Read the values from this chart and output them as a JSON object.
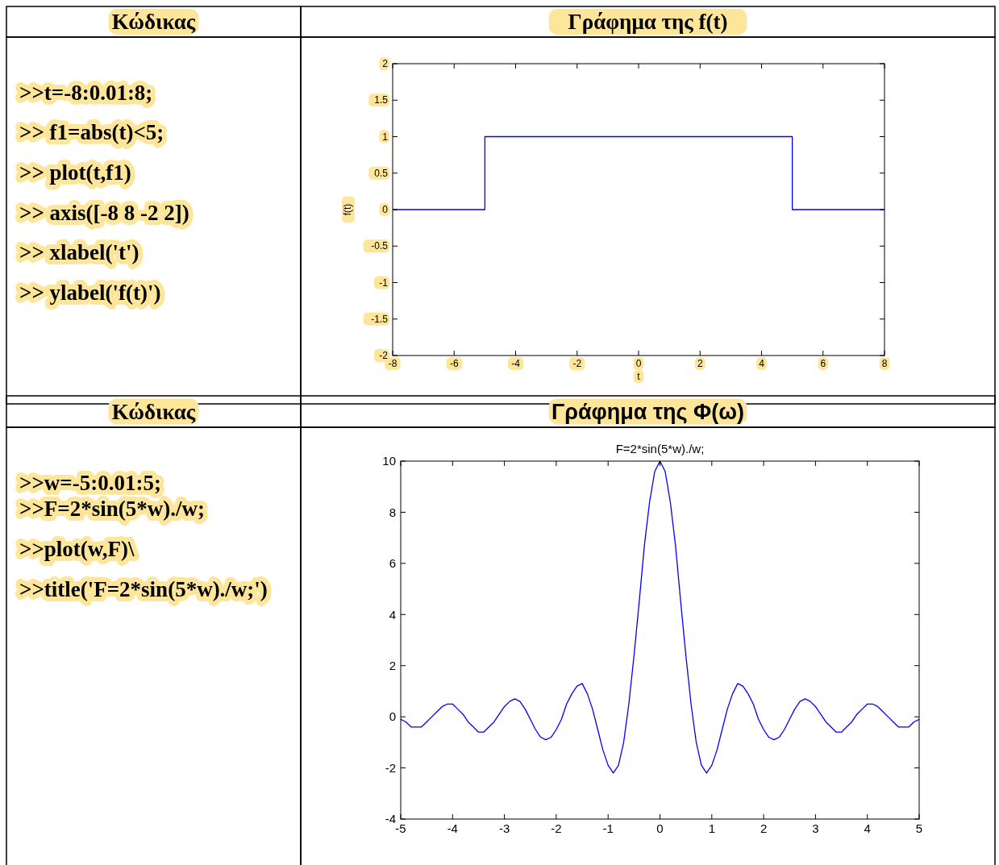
{
  "chart_data": [
    {
      "type": "other",
      "title": "Κώδικας",
      "annotations": [
        ">>t=-8:0.01:8;",
        ">> f1=abs(t)<5;",
        ">> plot(t,f1)",
        ">> axis([-8 8 -2 2])",
        ">> xlabel('t')",
        ">> ylabel('f(t)')"
      ]
    },
    {
      "type": "line",
      "title": "Γράφημα της f(t)",
      "xlabel": "t",
      "ylabel": "f(t)",
      "series": [
        {
          "color": "#0000ff",
          "x": [
            -8,
            -5,
            -5,
            5,
            5,
            8
          ],
          "values": [
            0,
            0,
            1,
            1,
            0,
            0
          ]
        }
      ],
      "xlim": [
        -8,
        8
      ],
      "ylim": [
        -2,
        2
      ],
      "xticks": [
        -8,
        -6,
        -4,
        -2,
        0,
        2,
        4,
        6,
        8
      ],
      "yticks": [
        -2,
        -1.5,
        -1,
        -0.5,
        0,
        0.5,
        1,
        1.5,
        2
      ]
    },
    {
      "type": "other",
      "title": "Κώδικας",
      "annotations": [
        ">>w=-5:0.01:5;",
        ">>F=2*sin(5*w)./w;",
        ">>plot(w,F)\\",
        ">>title('F=2*sin(5*w)./w;')"
      ]
    },
    {
      "type": "line",
      "title": "Γράφημα της Φ(ω)",
      "subtitle": "F=2*sin(5*w)./w;",
      "series": [
        {
          "color": "#0000ff",
          "x": [
            -5,
            -4.9,
            -4.8,
            -4.7,
            -4.6,
            -4.5,
            -4.4,
            -4.3,
            -4.2,
            -4.1,
            -4,
            -3.9,
            -3.8,
            -3.7,
            -3.6,
            -3.5,
            -3.4,
            -3.3,
            -3.2,
            -3.1,
            -3,
            -2.9,
            -2.8,
            -2.7,
            -2.6,
            -2.5,
            -2.4,
            -2.3,
            -2.2,
            -2.1,
            -2,
            -1.9,
            -1.8,
            -1.7,
            -1.6,
            -1.5,
            -1.4,
            -1.3,
            -1.2,
            -1.1,
            -1,
            -0.9,
            -0.8,
            -0.7,
            -0.6,
            -0.5,
            -0.4,
            -0.3,
            -0.2,
            -0.1,
            0,
            0.1,
            0.2,
            0.3,
            0.4,
            0.5,
            0.6,
            0.7,
            0.8,
            0.9,
            1,
            1.1,
            1.2,
            1.3,
            1.4,
            1.5,
            1.6,
            1.7,
            1.8,
            1.9,
            2,
            2.1,
            2.2,
            2.3,
            2.4,
            2.5,
            2.6,
            2.7,
            2.8,
            2.9,
            3,
            3.1,
            3.2,
            3.3,
            3.4,
            3.5,
            3.6,
            3.7,
            3.8,
            3.9,
            4,
            4.1,
            4.2,
            4.3,
            4.4,
            4.5,
            4.6,
            4.7,
            4.8,
            4.9,
            5
          ],
          "values": [
            -0.1,
            -0.2,
            -0.4,
            -0.4,
            -0.4,
            -0.2,
            0,
            0.2,
            0.4,
            0.5,
            0.5,
            0.3,
            0.1,
            -0.2,
            -0.4,
            -0.6,
            -0.6,
            -0.4,
            -0.2,
            0.1,
            0.4,
            0.6,
            0.7,
            0.6,
            0.3,
            -0.1,
            -0.5,
            -0.8,
            -0.9,
            -0.8,
            -0.5,
            -0.1,
            0.5,
            0.9,
            1.2,
            1.3,
            0.9,
            0.3,
            -0.5,
            -1.3,
            -1.9,
            -2.2,
            -1.9,
            -1,
            0.5,
            2.4,
            4.5,
            6.7,
            8.4,
            9.6,
            10,
            9.6,
            8.4,
            6.7,
            4.5,
            2.4,
            0.5,
            -1,
            -1.9,
            -2.2,
            -1.9,
            -1.3,
            -0.5,
            0.3,
            0.9,
            1.3,
            1.2,
            0.9,
            0.5,
            -0.1,
            -0.5,
            -0.8,
            -0.9,
            -0.8,
            -0.5,
            -0.1,
            0.3,
            0.6,
            0.7,
            0.6,
            0.4,
            0.1,
            -0.2,
            -0.4,
            -0.6,
            -0.6,
            -0.4,
            -0.2,
            0.1,
            0.3,
            0.5,
            0.5,
            0.4,
            0.2,
            0,
            -0.2,
            -0.4,
            -0.4,
            -0.4,
            -0.2,
            -0.1
          ]
        }
      ],
      "xlim": [
        -5,
        5
      ],
      "ylim": [
        -4,
        10
      ],
      "xticks": [
        -5,
        -4,
        -3,
        -2,
        -1,
        0,
        1,
        2,
        3,
        4,
        5
      ],
      "yticks": [
        -4,
        -2,
        0,
        2,
        4,
        6,
        8,
        10
      ]
    }
  ]
}
